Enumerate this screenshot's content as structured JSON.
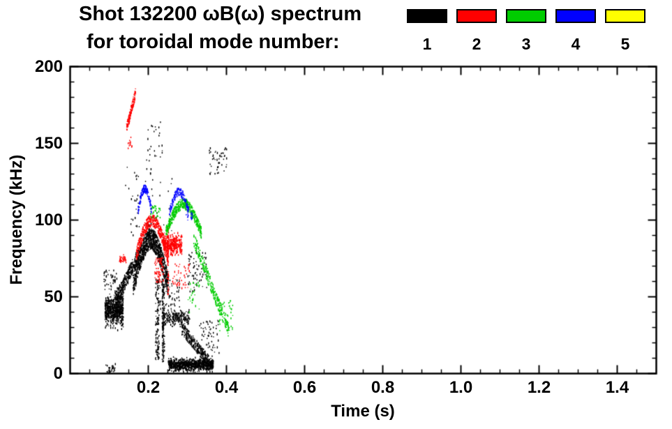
{
  "header": {
    "title_line1": "Shot 132200 ωB(ω) spectrum",
    "title_line2": "for toroidal mode number:"
  },
  "legend": {
    "modes": [
      {
        "label": "1",
        "color": "#000000"
      },
      {
        "label": "2",
        "color": "#ff0000"
      },
      {
        "label": "3",
        "color": "#00cc00"
      },
      {
        "label": "4",
        "color": "#0000ff"
      },
      {
        "label": "5",
        "color": "#ffff00"
      }
    ]
  },
  "chart_data": {
    "type": "scatter",
    "title": "Shot 132200 ωB(ω) spectrum for toroidal mode number: 1-5",
    "xlabel": "Time (s)",
    "ylabel": "Frequency (kHz)",
    "xlim": [
      0.0,
      1.5
    ],
    "ylim": [
      0,
      200
    ],
    "grid": false,
    "legend_position": "top-right",
    "x_major_step": 0.2,
    "x_minor_step": 0.05,
    "y_major_step": 50,
    "y_minor_step": 10,
    "xticks": [
      {
        "v": 0.2,
        "label": "0.2"
      },
      {
        "v": 0.4,
        "label": "0.4"
      },
      {
        "v": 0.6,
        "label": "0.6"
      },
      {
        "v": 0.8,
        "label": "0.8"
      },
      {
        "v": 1.0,
        "label": "1.0"
      },
      {
        "v": 1.2,
        "label": "1.2"
      },
      {
        "v": 1.4,
        "label": "1.4"
      }
    ],
    "yticks": [
      {
        "v": 0,
        "label": "0"
      },
      {
        "v": 50,
        "label": "50"
      },
      {
        "v": 100,
        "label": "100"
      },
      {
        "v": 150,
        "label": "150"
      },
      {
        "v": 200,
        "label": "200"
      }
    ],
    "series": [
      {
        "name": "n=1",
        "color": "#000000",
        "clusters": [
          {
            "type": "blob",
            "t": [
              0.088,
              0.135
            ],
            "f": [
              28,
              56
            ],
            "n": 650
          },
          {
            "type": "line",
            "t": [
              0.115,
              0.175
            ],
            "f": [
              48,
              78
            ],
            "n": 350,
            "jitter": 10
          },
          {
            "type": "arc",
            "t": [
              0.16,
              0.25
            ],
            "f": [
              58,
              88
            ],
            "n": 900,
            "jitter": 14
          },
          {
            "type": "vstreak",
            "t": [
              0.205,
              0.245
            ],
            "f": [
              8,
              62
            ],
            "n": 280,
            "lines": 7
          },
          {
            "type": "blob",
            "t": [
              0.24,
              0.305
            ],
            "f": [
              30,
              44
            ],
            "n": 220
          },
          {
            "type": "blob",
            "t": [
              0.25,
              0.365
            ],
            "f": [
              1,
              12
            ],
            "n": 850
          },
          {
            "type": "line",
            "t": [
              0.285,
              0.36
            ],
            "f": [
              30,
              6
            ],
            "n": 260,
            "jitter": 8
          },
          {
            "type": "sparse",
            "t": [
              0.19,
              0.235
            ],
            "f": [
              138,
              168
            ],
            "n": 25
          },
          {
            "type": "sparse",
            "t": [
              0.355,
              0.4
            ],
            "f": [
              130,
              148
            ],
            "n": 45
          },
          {
            "type": "sparse",
            "t": [
              0.3,
              0.35
            ],
            "f": [
              52,
              80
            ],
            "n": 70
          },
          {
            "type": "sparse",
            "t": [
              0.14,
              0.26
            ],
            "f": [
              90,
              135
            ],
            "n": 55
          },
          {
            "type": "sparse",
            "t": [
              0.085,
              0.12
            ],
            "f": [
              55,
              68
            ],
            "n": 45
          },
          {
            "type": "sparse",
            "t": [
              0.22,
              0.28
            ],
            "f": [
              42,
              62
            ],
            "n": 60
          },
          {
            "type": "sparse",
            "t": [
              0.33,
              0.38
            ],
            "f": [
              12,
              35
            ],
            "n": 60
          },
          {
            "type": "sparse",
            "t": [
              0.09,
              0.115
            ],
            "f": [
              1,
              7
            ],
            "n": 25
          }
        ]
      },
      {
        "name": "n=2",
        "color": "#ff0000",
        "clusters": [
          {
            "type": "line",
            "t": [
              0.143,
              0.166
            ],
            "f": [
              160,
              183
            ],
            "n": 130,
            "jitter": 6
          },
          {
            "type": "sparse",
            "t": [
              0.147,
              0.157
            ],
            "f": [
              147,
              155
            ],
            "n": 12
          },
          {
            "type": "arc",
            "t": [
              0.168,
              0.248
            ],
            "f": [
              78,
              100
            ],
            "n": 380,
            "jitter": 8
          },
          {
            "type": "blob",
            "t": [
              0.238,
              0.285
            ],
            "f": [
              76,
              93
            ],
            "n": 380
          },
          {
            "type": "sparse",
            "t": [
              0.215,
              0.238
            ],
            "f": [
              60,
              76
            ],
            "n": 70
          },
          {
            "type": "vstreak",
            "t": [
              0.243,
              0.252
            ],
            "f": [
              52,
              96
            ],
            "n": 70,
            "lines": 2
          },
          {
            "type": "sparse",
            "t": [
              0.26,
              0.305
            ],
            "f": [
              56,
              72
            ],
            "n": 45
          },
          {
            "type": "blob",
            "t": [
              0.125,
              0.142
            ],
            "f": [
              71,
              78
            ],
            "n": 30
          }
        ]
      },
      {
        "name": "n=3",
        "color": "#00cc00",
        "clusters": [
          {
            "type": "arc",
            "t": [
              0.243,
              0.335
            ],
            "f": [
              92,
              111
            ],
            "n": 420,
            "jitter": 7
          },
          {
            "type": "line",
            "t": [
              0.315,
              0.405
            ],
            "f": [
              88,
              28
            ],
            "n": 260,
            "jitter": 9
          },
          {
            "type": "sparse",
            "t": [
              0.38,
              0.415
            ],
            "f": [
              28,
              48
            ],
            "n": 45
          },
          {
            "type": "sparse",
            "t": [
              0.205,
              0.23
            ],
            "f": [
              102,
              110
            ],
            "n": 30
          },
          {
            "type": "sparse",
            "t": [
              0.3,
              0.33
            ],
            "f": [
              40,
              60
            ],
            "n": 25
          }
        ]
      },
      {
        "name": "n=4",
        "color": "#0000ff",
        "clusters": [
          {
            "type": "arc",
            "t": [
              0.173,
              0.207
            ],
            "f": [
              107,
              121
            ],
            "n": 140,
            "jitter": 5
          },
          {
            "type": "arc",
            "t": [
              0.253,
              0.302
            ],
            "f": [
              106,
              119
            ],
            "n": 140,
            "jitter": 5
          },
          {
            "type": "sparse",
            "t": [
              0.295,
              0.312
            ],
            "f": [
              99,
              107
            ],
            "n": 18
          }
        ]
      },
      {
        "name": "n=5",
        "color": "#ffff00",
        "clusters": []
      }
    ]
  }
}
